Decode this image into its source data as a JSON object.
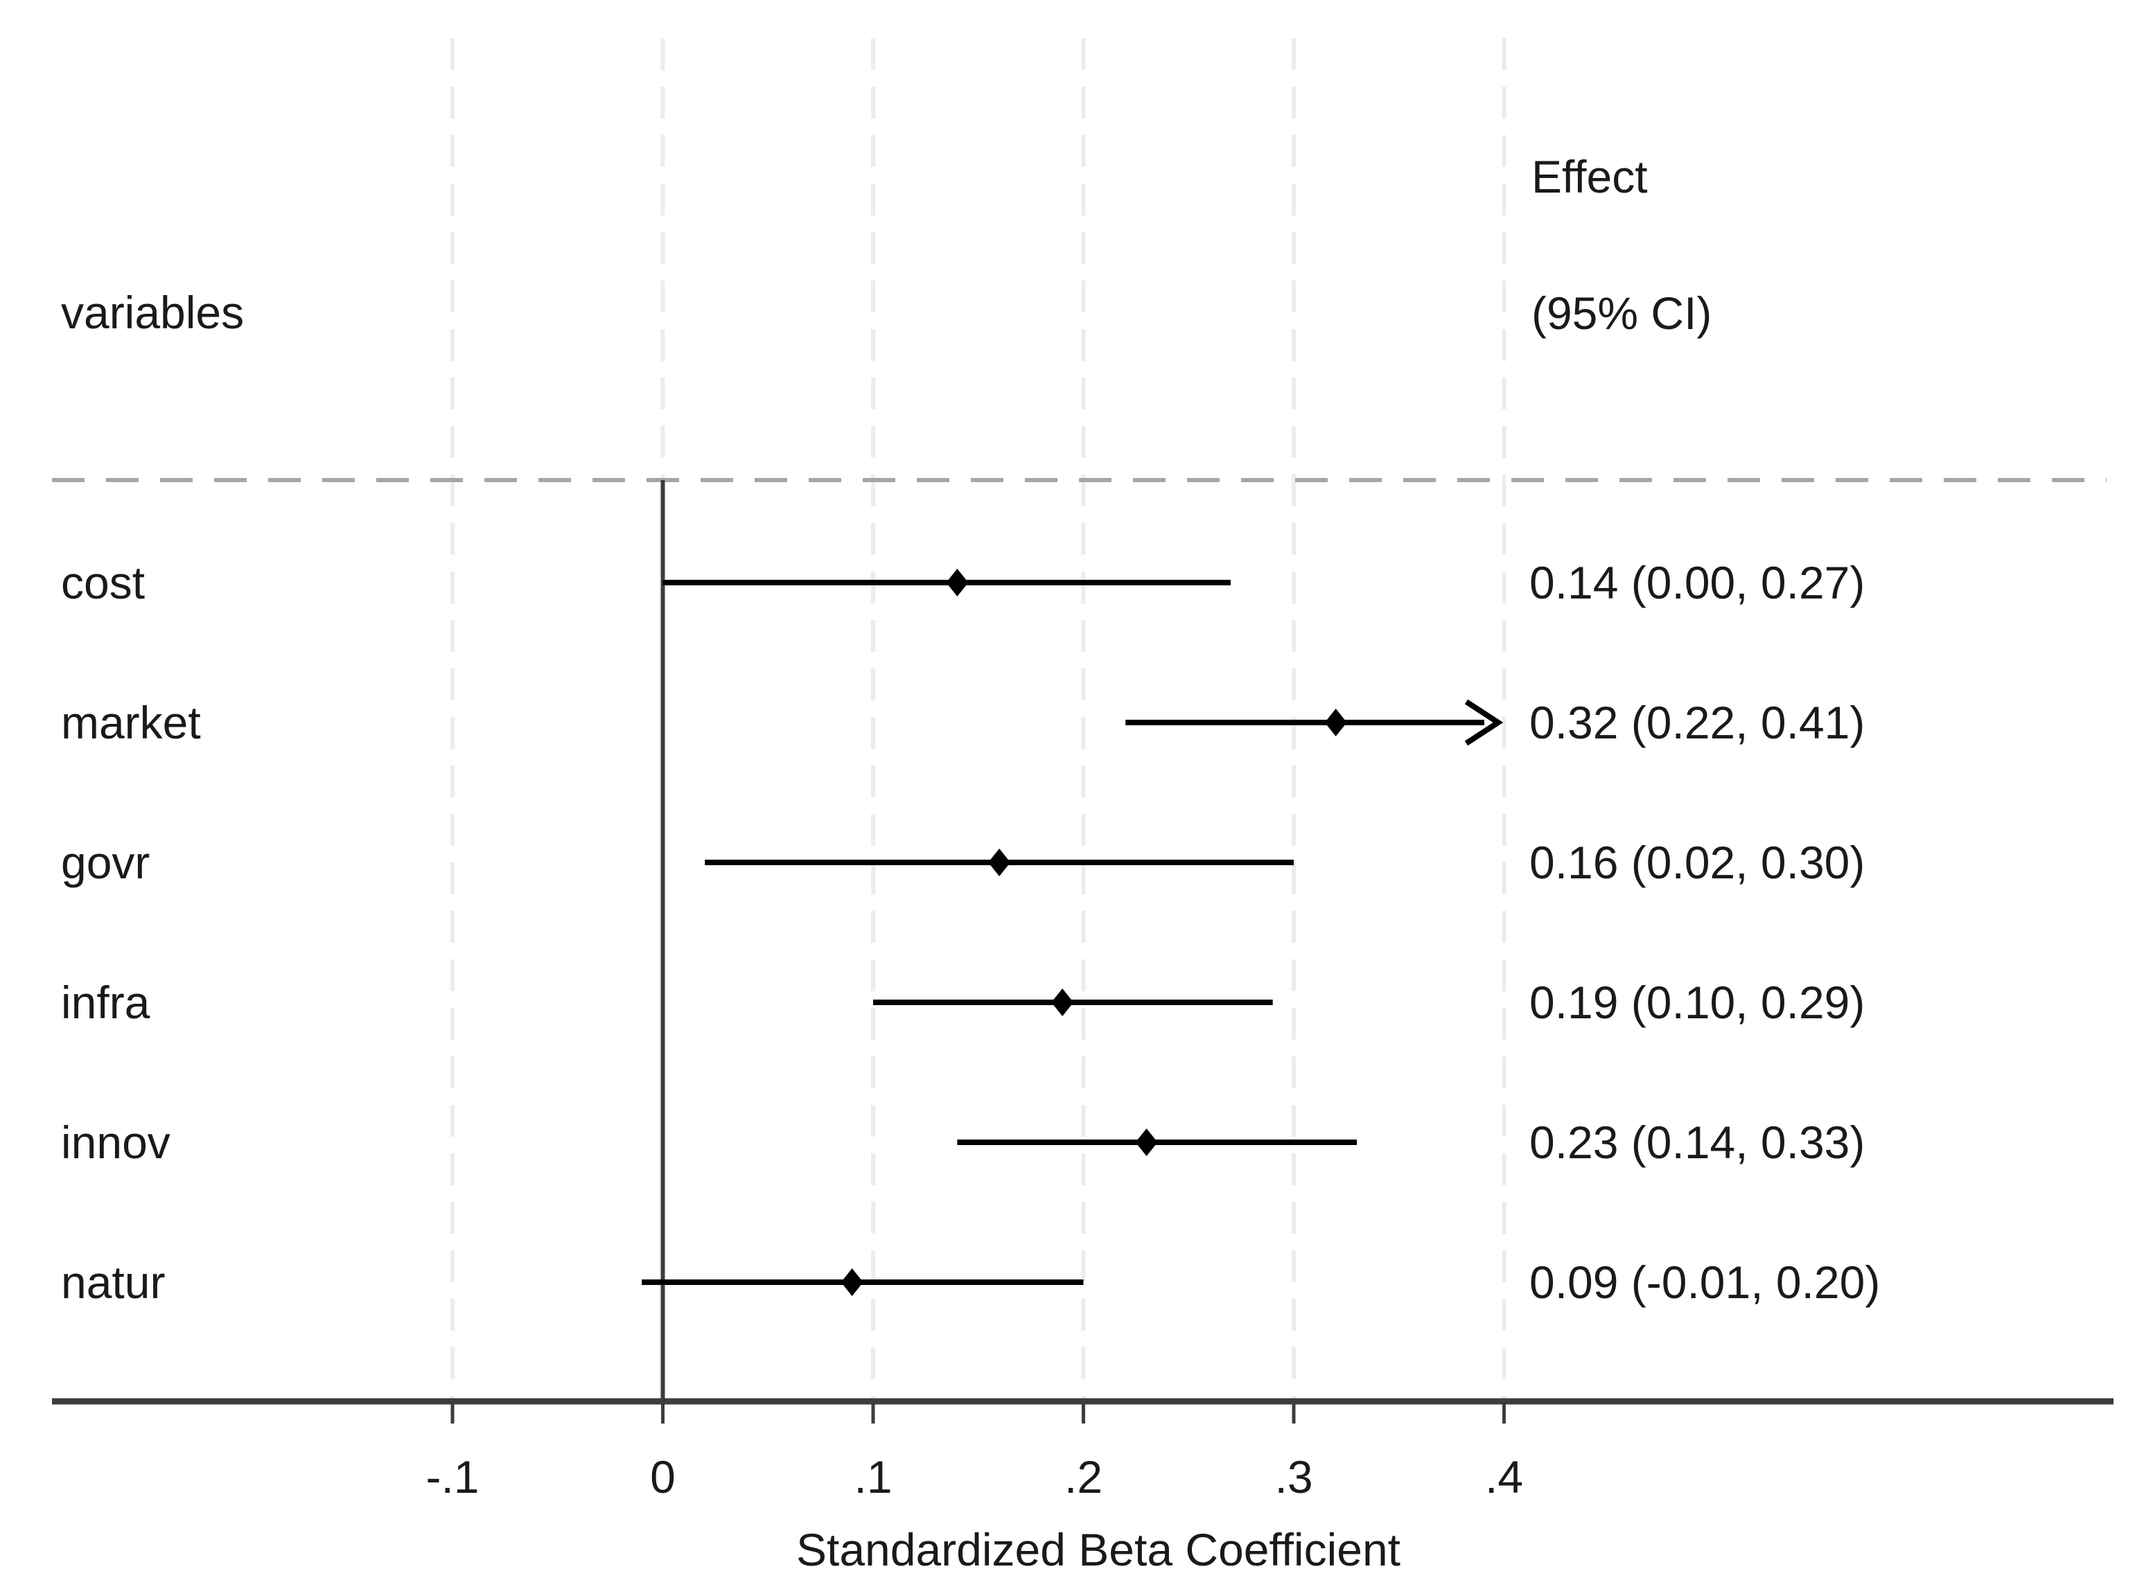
{
  "chart_data": {
    "type": "scatter",
    "subtype": "forest-plot",
    "title": "",
    "xlabel": "Standardized Beta Coefficient",
    "ylabel": "",
    "col_headers": {
      "left": "variables",
      "right_line1": "Effect",
      "right_line2": "(95% CI)"
    },
    "x_ticks": [
      {
        "value": -0.1,
        "label": "-.1"
      },
      {
        "value": 0.0,
        "label": "0"
      },
      {
        "value": 0.1,
        "label": ".1"
      },
      {
        "value": 0.2,
        "label": ".2"
      },
      {
        "value": 0.3,
        "label": ".3"
      },
      {
        "value": 0.4,
        "label": ".4"
      }
    ],
    "xlim": [
      -0.1,
      0.4
    ],
    "grid": true,
    "reference_line_x": 0,
    "rows": [
      {
        "label": "cost",
        "effect": 0.14,
        "ci_low": 0.0,
        "ci_high": 0.27,
        "text": "0.14 (0.00, 0.27)",
        "clipped": false
      },
      {
        "label": "market",
        "effect": 0.32,
        "ci_low": 0.22,
        "ci_high": 0.41,
        "text": "0.32 (0.22, 0.41)",
        "clipped": true
      },
      {
        "label": "govr",
        "effect": 0.16,
        "ci_low": 0.02,
        "ci_high": 0.3,
        "text": "0.16 (0.02, 0.30)",
        "clipped": false
      },
      {
        "label": "infra",
        "effect": 0.19,
        "ci_low": 0.1,
        "ci_high": 0.29,
        "text": "0.19 (0.10, 0.29)",
        "clipped": false
      },
      {
        "label": "innov",
        "effect": 0.23,
        "ci_low": 0.14,
        "ci_high": 0.33,
        "text": "0.23 (0.14, 0.33)",
        "clipped": false
      },
      {
        "label": "natur",
        "effect": 0.09,
        "ci_low": -0.01,
        "ci_high": 0.2,
        "text": "0.09 (-0.01, 0.20)",
        "clipped": false
      }
    ],
    "colors": {
      "marker": "#000000",
      "ci_line": "#000000",
      "gridline": "#ececec",
      "separator": "#a6a6a6",
      "axis": "#3d3d3d",
      "text": "#1a1a1a",
      "background": "#ffffff"
    }
  }
}
